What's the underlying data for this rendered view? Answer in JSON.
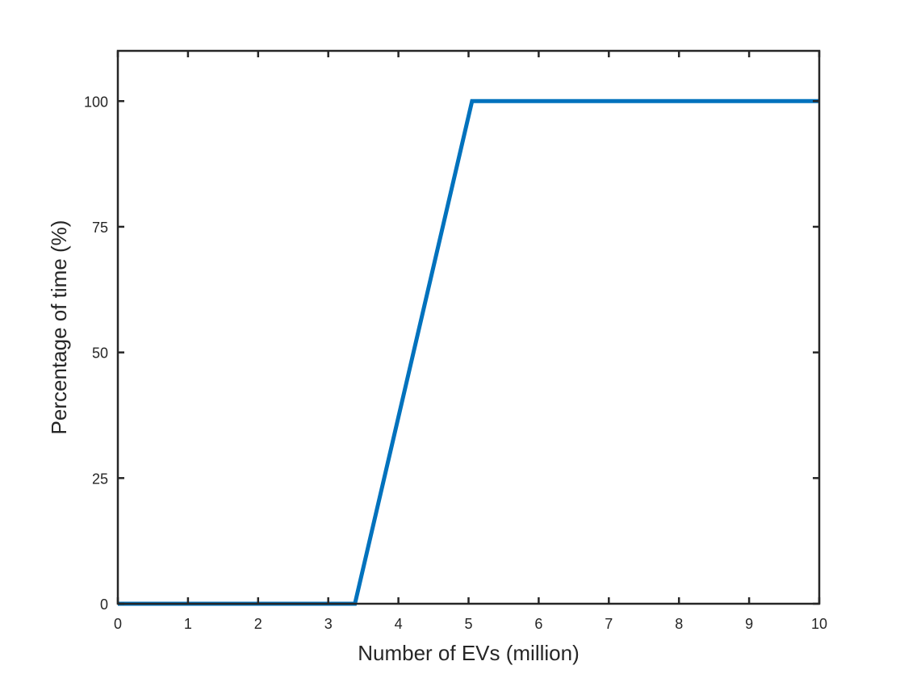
{
  "chart_data": {
    "type": "line",
    "title": "",
    "xlabel": "Number of EVs (million)",
    "ylabel": "Percentage of time (%)",
    "xlim": [
      0,
      10
    ],
    "ylim": [
      0,
      110
    ],
    "xticks": [
      0,
      1,
      2,
      3,
      4,
      5,
      6,
      7,
      8,
      9,
      10
    ],
    "yticks": [
      0,
      25,
      50,
      75,
      100
    ],
    "grid": false,
    "legend": "none",
    "series": [
      {
        "color": "#0072BD",
        "x": [
          0,
          3.38,
          5.05,
          10
        ],
        "y": [
          0,
          0,
          100,
          100
        ]
      }
    ]
  }
}
